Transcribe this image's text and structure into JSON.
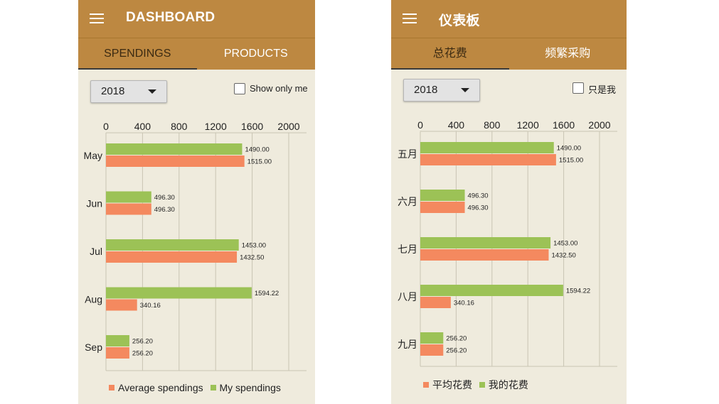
{
  "colors": {
    "appbar": "#bd8841",
    "average": "#f4895f",
    "mine": "#9cc256",
    "background": "#efebdd"
  },
  "screens": [
    {
      "key": "en",
      "menu_icon": "hamburger-menu-icon",
      "title": "DASHBOARD",
      "tabs": [
        "SPENDINGS",
        "PRODUCTS"
      ],
      "active_tab": 0,
      "year": "2018",
      "checkbox_label": "Show only me",
      "checkbox_checked": false,
      "legend": [
        "Average spendings",
        "My spendings"
      ]
    },
    {
      "key": "zh",
      "menu_icon": "hamburger-menu-icon",
      "title": "仪表板",
      "tabs": [
        "总花费",
        "频繁采购"
      ],
      "active_tab": 0,
      "year": "2018",
      "checkbox_label": "只是我",
      "checkbox_checked": false,
      "legend": [
        "平均花费",
        "我的花费"
      ]
    }
  ],
  "chart_data": [
    {
      "type": "bar",
      "orientation": "horizontal",
      "categories": [
        "May",
        "Jun",
        "Jul",
        "Aug",
        "Sep"
      ],
      "series": [
        {
          "name": "My spendings",
          "values": [
            1490.0,
            496.3,
            1453.0,
            1594.22,
            256.2
          ],
          "labels": [
            "1490.00",
            "496.30",
            "1453.00",
            "1594.22",
            "256.20"
          ]
        },
        {
          "name": "Average spendings",
          "values": [
            1515.0,
            496.3,
            1432.5,
            340.16,
            256.2
          ],
          "labels": [
            "1515.00",
            "496.30",
            "1432.50",
            "340.16",
            "256.20"
          ]
        }
      ],
      "xlim": [
        0,
        2000
      ],
      "xticks": [
        "0",
        "400",
        "800",
        "1200",
        "1600",
        "2000"
      ],
      "grid": true,
      "legend_position": "bottom"
    },
    {
      "type": "bar",
      "orientation": "horizontal",
      "categories": [
        "五月",
        "六月",
        "七月",
        "八月",
        "九月"
      ],
      "series": [
        {
          "name": "我的花费",
          "values": [
            1490.0,
            496.3,
            1453.0,
            1594.22,
            256.2
          ],
          "labels": [
            "1490.00",
            "496.30",
            "1453.00",
            "1594.22",
            "256.20"
          ]
        },
        {
          "name": "平均花费",
          "values": [
            1515.0,
            496.3,
            1432.5,
            340.16,
            256.2
          ],
          "labels": [
            "1515.00",
            "496.30",
            "1432.50",
            "340.16",
            "256.20"
          ]
        }
      ],
      "xlim": [
        0,
        2000
      ],
      "xticks": [
        "0",
        "400",
        "800",
        "1200",
        "1600",
        "2000"
      ],
      "grid": true,
      "legend_position": "bottom"
    }
  ]
}
